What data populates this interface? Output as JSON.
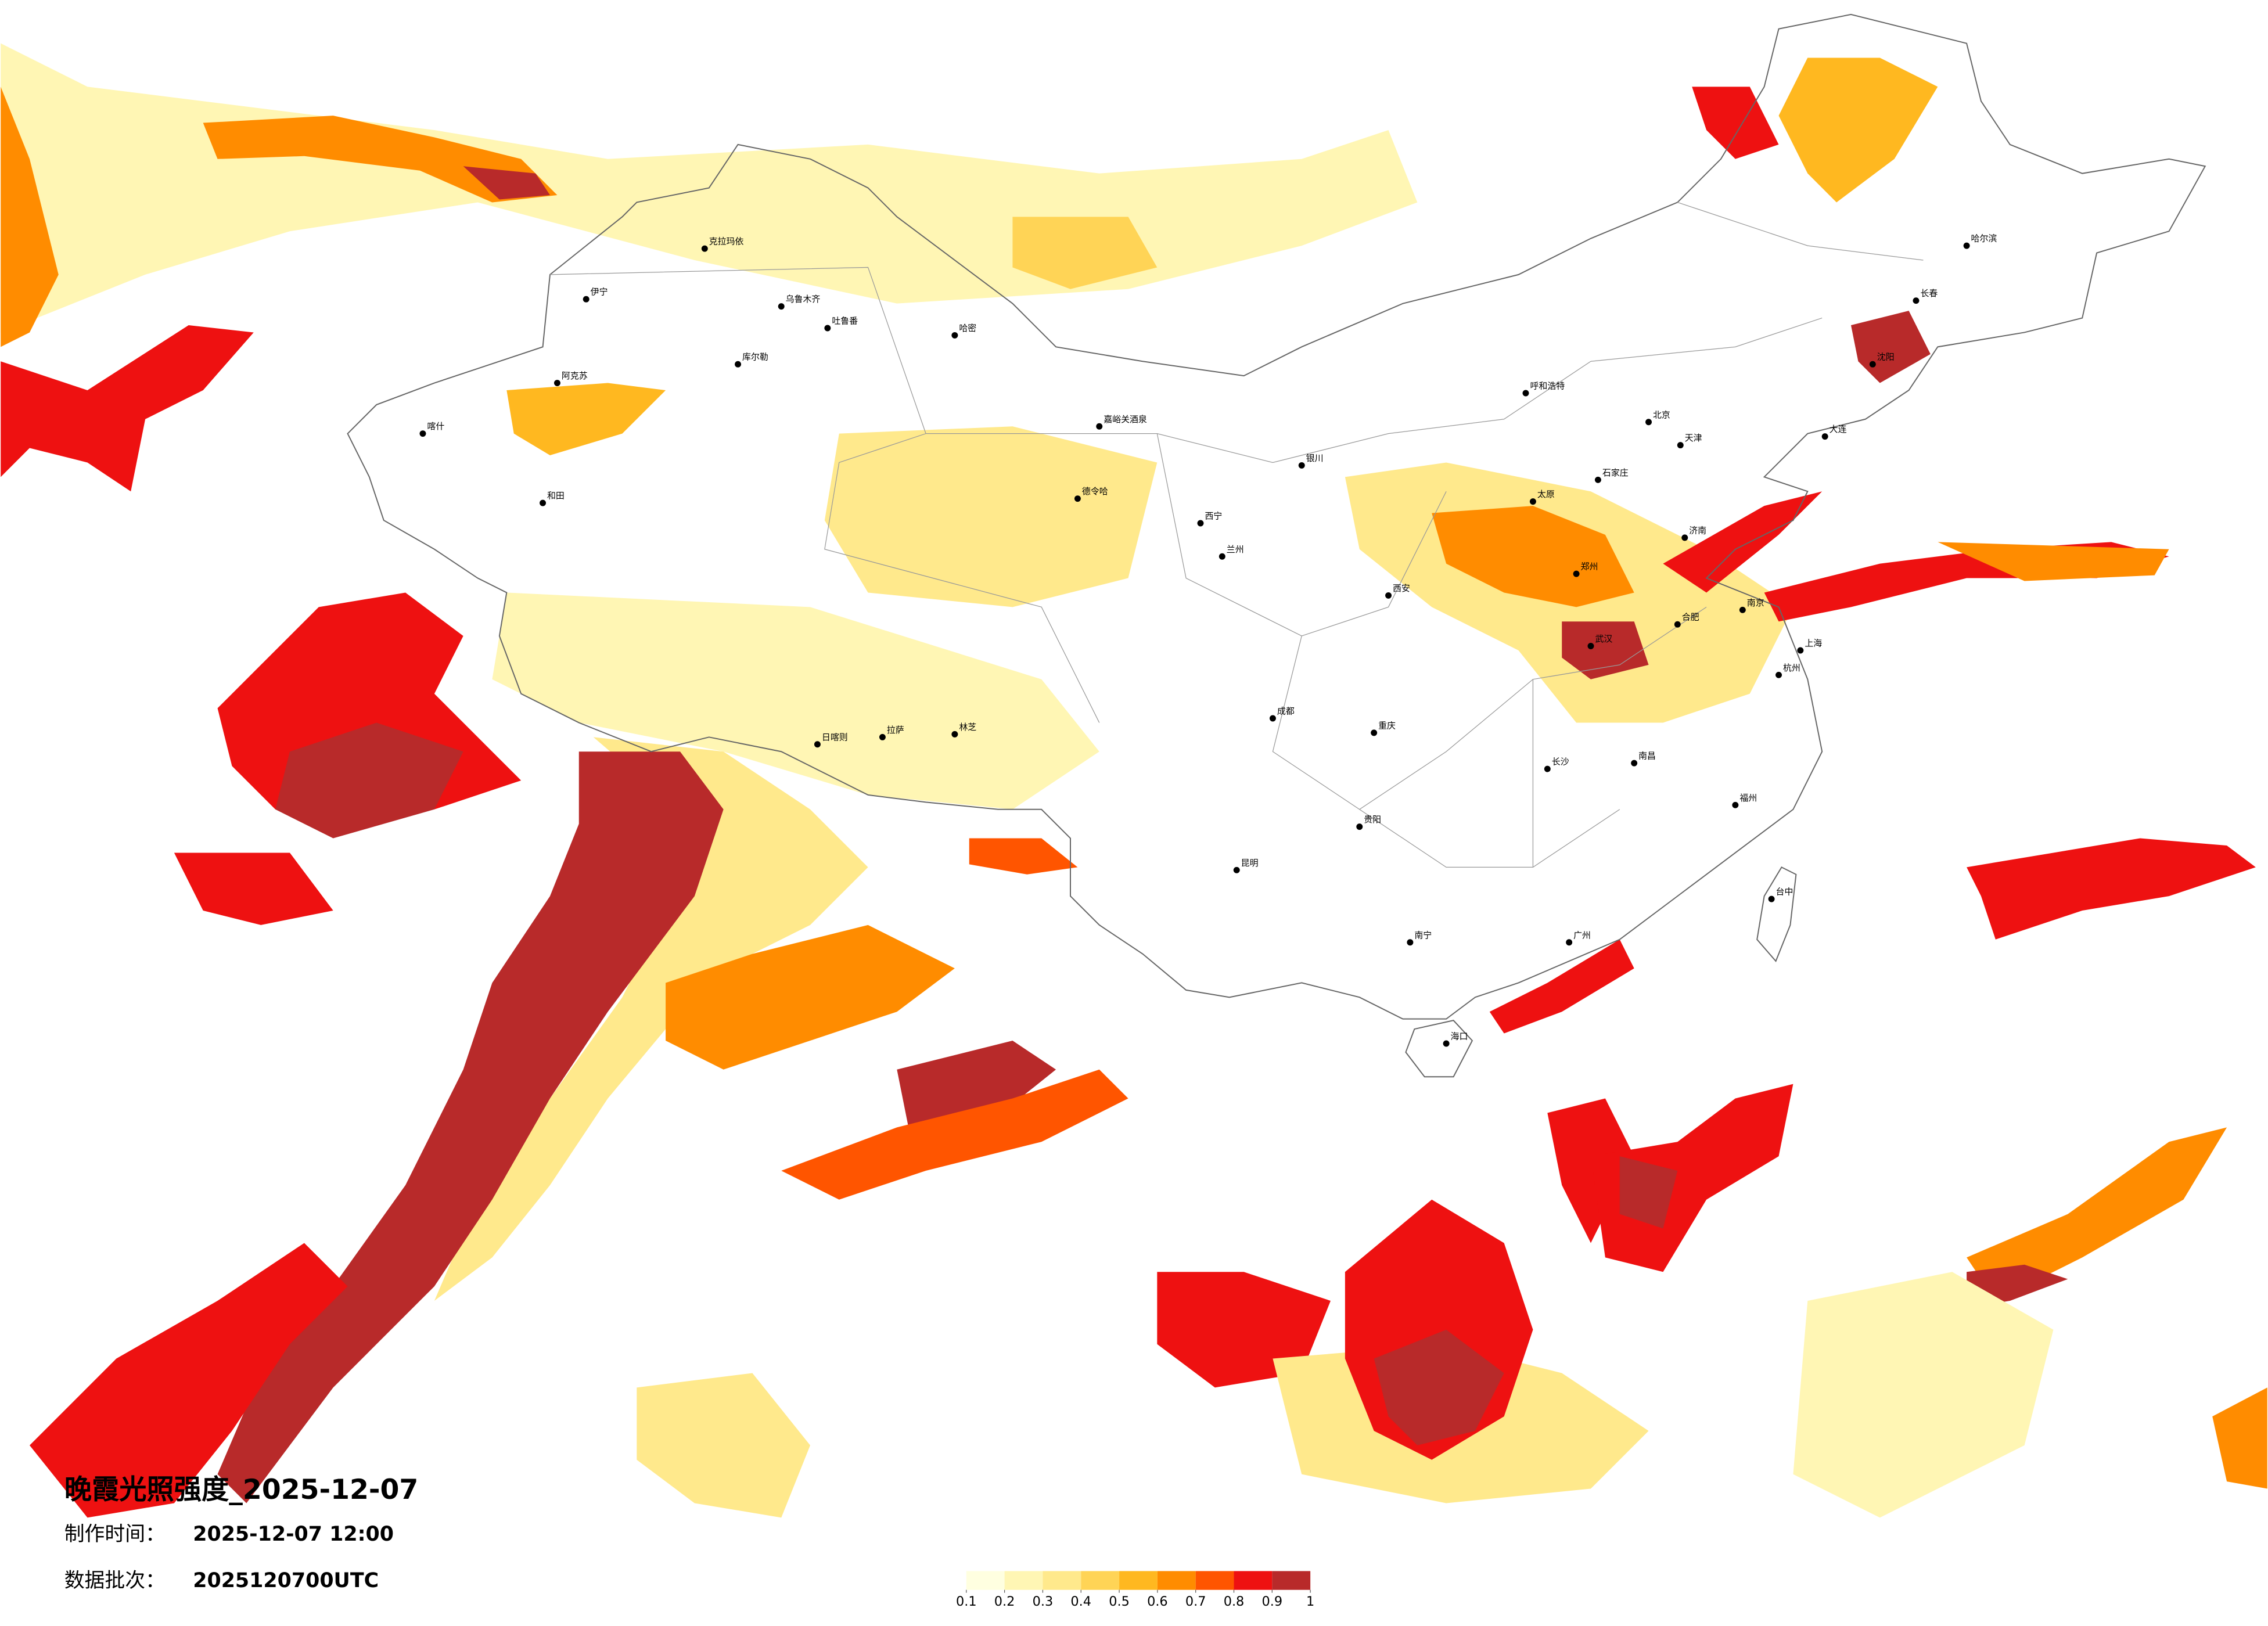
{
  "title": "晚霞光照强度_2025-12-07",
  "made_label": "制作时间：",
  "made_time": "2025-12-07 12:00",
  "batch_label": "数据批次：",
  "batch": "2025120700UTC",
  "colorbar": {
    "ticks": [
      0.1,
      0.2,
      0.3,
      0.4,
      0.5,
      0.6,
      0.7,
      0.8,
      0.9,
      1
    ],
    "colors": [
      "#ffffe0",
      "#fff6b4",
      "#ffe98c",
      "#ffd456",
      "#ffb820",
      "#ff8c00",
      "#ff5500",
      "#ee1111",
      "#b82a2a"
    ]
  },
  "cities": [
    "伊宁",
    "克拉玛依",
    "乌鲁木齐",
    "吐鲁番",
    "哈密",
    "阿克苏",
    "喀什",
    "和田",
    "库尔勒",
    "嘉峪关酒泉",
    "德令哈",
    "日喀则",
    "拉萨",
    "林芝",
    "西宁",
    "兰州",
    "银川",
    "呼和浩特",
    "北京",
    "天津",
    "石家庄",
    "太原",
    "济南",
    "郑州",
    "西安",
    "武汉",
    "合肥",
    "南京",
    "上海",
    "杭州",
    "长沙",
    "南昌",
    "福州",
    "重庆",
    "成都",
    "贵阳",
    "昆明",
    "南宁",
    "广州",
    "海口",
    "台中",
    "哈尔滨",
    "长春",
    "沈阳",
    "大连"
  ]
}
